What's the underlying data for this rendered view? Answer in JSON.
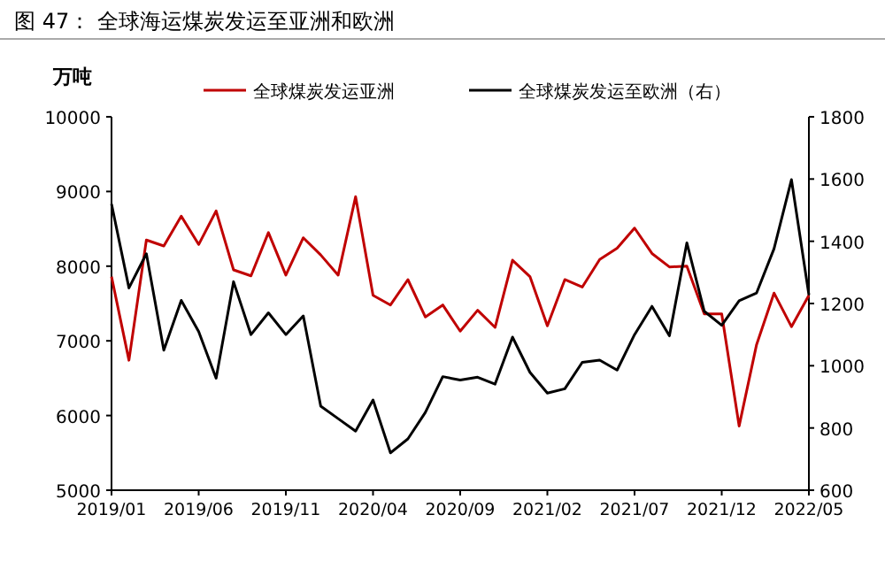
{
  "chart_data": {
    "type": "line",
    "title": "图 47：    全球海运煤炭发运至亚洲和欧洲",
    "ylabel": "万吨",
    "categories": [
      "2019/01",
      null,
      null,
      null,
      null,
      "2019/06",
      null,
      null,
      null,
      null,
      "2019/11",
      null,
      null,
      null,
      null,
      "2020/04",
      null,
      null,
      null,
      null,
      "2020/09",
      null,
      null,
      null,
      null,
      "2021/02",
      null,
      null,
      null,
      null,
      "2021/07",
      null,
      null,
      null,
      null,
      "2021/12",
      null,
      null,
      null,
      null,
      "2022/05"
    ],
    "series": [
      {
        "name": "全球煤炭发运亚洲",
        "color": "#c00000",
        "values": [
          7860,
          6740,
          8350,
          8270,
          8670,
          8290,
          8740,
          7950,
          7870,
          8450,
          7880,
          8380,
          8150,
          7880,
          8930,
          7610,
          7480,
          7820,
          7320,
          7480,
          7130,
          7410,
          7180,
          8080,
          7860,
          7200,
          7820,
          7720,
          8090,
          8240,
          8510,
          8170,
          7990,
          8000,
          7360,
          7360,
          5860,
          6950,
          7640,
          7190,
          7610
        ]
      },
      {
        "name": "全球煤炭发运至欧洲（右）",
        "color": "#000000",
        "axis": "y2",
        "values": [
          1520,
          1250,
          1360,
          1050,
          1210,
          1110,
          960,
          1270,
          1100,
          1170,
          1100,
          1160,
          870,
          830,
          790,
          890,
          720,
          765,
          850,
          965,
          954,
          963,
          941,
          1092,
          979,
          912,
          926,
          1011,
          1018,
          986,
          1100,
          1191,
          1096,
          1395,
          1175,
          1130,
          1209,
          1234,
          1376,
          1598,
          1228
        ]
      }
    ],
    "ylim": [
      5000,
      10000
    ],
    "yticks": [
      5000,
      6000,
      7000,
      8000,
      9000,
      10000
    ],
    "y2lim": [
      600,
      1800
    ],
    "y2ticks": [
      600,
      800,
      1000,
      1200,
      1400,
      1600,
      1800
    ],
    "legend": "top",
    "grid": false,
    "marker": "none",
    "line_style": "solid"
  }
}
